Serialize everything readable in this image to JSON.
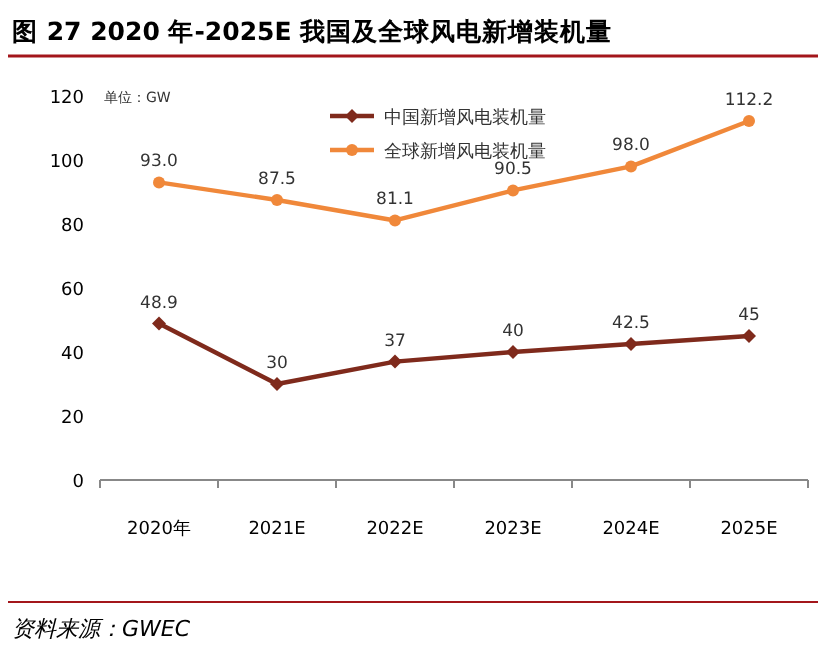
{
  "chart_data": {
    "type": "line",
    "title": "图 27 2020 年-2025E 我国及全球风电新增装机量",
    "ylabel": "单位：GW",
    "categories": [
      "2020年",
      "2021E",
      "2022E",
      "2023E",
      "2024E",
      "2025E"
    ],
    "series": [
      {
        "name": "中国新增风电装机量",
        "color": "#7f2a1c",
        "marker": "diamond",
        "values": [
          48.9,
          30,
          37,
          40,
          42.5,
          45
        ],
        "value_labels": [
          "48.9",
          "30",
          "37",
          "40",
          "42.5",
          "45"
        ]
      },
      {
        "name": "全球新增风电装机量",
        "color": "#f0883a",
        "marker": "circle",
        "values": [
          93.0,
          87.5,
          81.1,
          90.5,
          98.0,
          112.2
        ],
        "value_labels": [
          "93.0",
          "87.5",
          "81.1",
          "90.5",
          "98.0",
          "112.2"
        ]
      }
    ],
    "ylim": [
      0,
      120
    ],
    "yticks": [
      0,
      20,
      40,
      60,
      80,
      100,
      120
    ],
    "legend": "top",
    "grid": false,
    "annotations": [
      "资料来源：GWEC"
    ]
  }
}
